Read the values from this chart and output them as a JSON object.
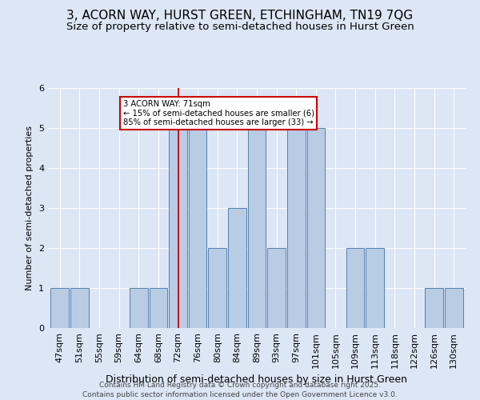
{
  "title": "3, ACORN WAY, HURST GREEN, ETCHINGHAM, TN19 7QG",
  "subtitle": "Size of property relative to semi-detached houses in Hurst Green",
  "xlabel": "Distribution of semi-detached houses by size in Hurst Green",
  "ylabel": "Number of semi-detached properties",
  "categories": [
    "47sqm",
    "51sqm",
    "55sqm",
    "59sqm",
    "64sqm",
    "68sqm",
    "72sqm",
    "76sqm",
    "80sqm",
    "84sqm",
    "89sqm",
    "93sqm",
    "97sqm",
    "101sqm",
    "105sqm",
    "109sqm",
    "113sqm",
    "118sqm",
    "122sqm",
    "126sqm",
    "130sqm"
  ],
  "values": [
    1,
    1,
    0,
    0,
    1,
    1,
    5,
    5,
    2,
    3,
    5,
    2,
    5,
    5,
    0,
    2,
    2,
    0,
    0,
    1,
    1
  ],
  "bar_color": "#b8cce4",
  "bar_edge_color": "#5580b0",
  "highlight_index": 6,
  "highlight_line_color": "#cc0000",
  "annotation_text": "3 ACORN WAY: 71sqm\n← 15% of semi-detached houses are smaller (6)\n85% of semi-detached houses are larger (33) →",
  "annotation_box_color": "#ffffff",
  "annotation_box_edge_color": "#cc0000",
  "footnote1": "Contains HM Land Registry data © Crown copyright and database right 2025.",
  "footnote2": "Contains public sector information licensed under the Open Government Licence v3.0.",
  "background_color": "#dce6f5",
  "ylim": [
    0,
    6
  ],
  "title_fontsize": 11,
  "subtitle_fontsize": 9.5,
  "tick_fontsize": 8,
  "ylabel_fontsize": 8,
  "xlabel_fontsize": 9
}
